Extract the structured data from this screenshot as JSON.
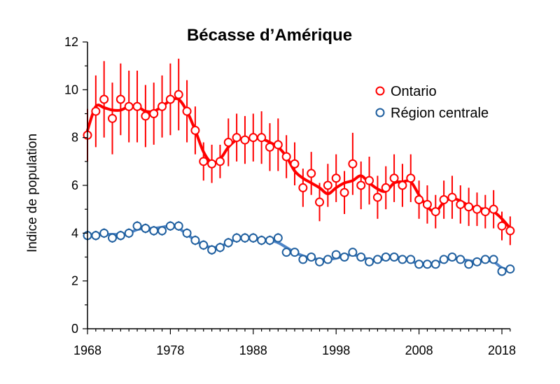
{
  "chart_data": {
    "type": "line",
    "title": "Bécasse d’Amérique",
    "xlabel": "",
    "ylabel": "Indice de population",
    "xlim": [
      1968,
      2019
    ],
    "ylim": [
      0,
      12
    ],
    "x_ticks": [
      "1968",
      "1978",
      "1988",
      "1998",
      "2008",
      "2018"
    ],
    "y_ticks": [
      "0",
      "2",
      "4",
      "6",
      "8",
      "10",
      "12"
    ],
    "legend_position": "top-right",
    "grid": false,
    "x": [
      1968,
      1969,
      1970,
      1971,
      1972,
      1973,
      1974,
      1975,
      1976,
      1977,
      1978,
      1979,
      1980,
      1981,
      1982,
      1983,
      1984,
      1985,
      1986,
      1987,
      1988,
      1989,
      1990,
      1991,
      1992,
      1993,
      1994,
      1995,
      1996,
      1997,
      1998,
      1999,
      2000,
      2001,
      2002,
      2003,
      2004,
      2005,
      2006,
      2007,
      2008,
      2009,
      2010,
      2011,
      2012,
      2013,
      2014,
      2015,
      2016,
      2017,
      2018,
      2019
    ],
    "series": [
      {
        "name": "Ontario",
        "color": "#ff0000",
        "values": [
          8.1,
          9.1,
          9.6,
          8.8,
          9.6,
          9.3,
          9.3,
          8.9,
          9.0,
          9.3,
          9.6,
          9.8,
          9.1,
          8.3,
          7.0,
          6.9,
          7.0,
          7.8,
          8.0,
          7.9,
          8.0,
          8.0,
          7.6,
          7.7,
          7.2,
          6.9,
          5.9,
          6.5,
          5.3,
          6.0,
          6.3,
          5.7,
          6.9,
          6.0,
          6.2,
          5.5,
          5.9,
          6.3,
          6.0,
          6.3,
          5.4,
          5.2,
          4.9,
          5.4,
          5.5,
          5.2,
          5.1,
          5.0,
          4.9,
          5.0,
          4.3,
          4.1
        ],
        "err": [
          1.1,
          1.5,
          1.6,
          1.5,
          1.5,
          1.5,
          1.5,
          1.3,
          1.3,
          1.3,
          1.5,
          1.5,
          1.3,
          1.0,
          0.8,
          0.8,
          0.7,
          1.0,
          1.0,
          1.0,
          1.0,
          1.1,
          1.0,
          1.1,
          0.9,
          0.9,
          0.8,
          0.9,
          0.8,
          0.9,
          1.0,
          0.9,
          1.3,
          1.0,
          1.0,
          0.9,
          0.9,
          1.0,
          0.9,
          1.0,
          0.8,
          0.8,
          0.7,
          0.8,
          0.9,
          0.8,
          0.8,
          0.7,
          0.7,
          0.8,
          0.6,
          0.6
        ],
        "trend": [
          8.3,
          9.3,
          9.25,
          9.15,
          9.15,
          9.3,
          9.3,
          9.1,
          9.1,
          9.3,
          9.55,
          9.6,
          9.1,
          8.3,
          7.4,
          6.95,
          7.1,
          7.6,
          7.9,
          7.95,
          7.95,
          7.95,
          7.8,
          7.6,
          7.2,
          6.6,
          6.3,
          6.1,
          5.9,
          5.65,
          5.9,
          6.1,
          6.2,
          6.4,
          6.1,
          5.85,
          5.75,
          6.1,
          6.15,
          6.15,
          5.6,
          5.1,
          4.9,
          5.3,
          5.45,
          5.35,
          5.15,
          5.05,
          5.0,
          4.9,
          4.6,
          4.2
        ]
      },
      {
        "name": "Région centrale",
        "color": "#1f5f9f",
        "trend_color": "#4f86c8",
        "values": [
          3.9,
          3.9,
          4.0,
          3.8,
          3.9,
          4.0,
          4.3,
          4.2,
          4.1,
          4.1,
          4.3,
          4.3,
          4.0,
          3.7,
          3.5,
          3.3,
          3.4,
          3.6,
          3.8,
          3.8,
          3.8,
          3.7,
          3.7,
          3.8,
          3.2,
          3.2,
          2.9,
          3.0,
          2.8,
          2.9,
          3.1,
          3.0,
          3.2,
          3.0,
          2.8,
          2.9,
          3.0,
          3.0,
          2.9,
          2.9,
          2.7,
          2.7,
          2.7,
          2.9,
          3.0,
          2.9,
          2.7,
          2.8,
          2.9,
          2.9,
          2.4,
          2.5
        ],
        "err": [
          0.2,
          0.2,
          0.2,
          0.2,
          0.2,
          0.2,
          0.2,
          0.2,
          0.2,
          0.2,
          0.2,
          0.2,
          0.2,
          0.2,
          0.2,
          0.2,
          0.2,
          0.2,
          0.2,
          0.2,
          0.2,
          0.2,
          0.2,
          0.2,
          0.15,
          0.15,
          0.15,
          0.15,
          0.15,
          0.15,
          0.15,
          0.15,
          0.15,
          0.15,
          0.15,
          0.15,
          0.15,
          0.15,
          0.15,
          0.15,
          0.15,
          0.15,
          0.15,
          0.15,
          0.15,
          0.15,
          0.15,
          0.15,
          0.15,
          0.15,
          0.15,
          0.15
        ],
        "trend": [
          3.9,
          3.95,
          3.95,
          3.95,
          3.95,
          4.0,
          4.15,
          4.2,
          4.2,
          4.25,
          4.3,
          4.2,
          3.95,
          3.7,
          3.5,
          3.4,
          3.45,
          3.6,
          3.75,
          3.8,
          3.8,
          3.75,
          3.7,
          3.6,
          3.4,
          3.2,
          3.05,
          2.95,
          2.9,
          2.9,
          2.95,
          3.05,
          3.1,
          3.0,
          2.9,
          2.85,
          2.95,
          3.0,
          2.95,
          2.85,
          2.7,
          2.7,
          2.75,
          2.85,
          2.95,
          2.9,
          2.85,
          2.8,
          2.85,
          2.8,
          2.55,
          2.45
        ]
      }
    ]
  }
}
